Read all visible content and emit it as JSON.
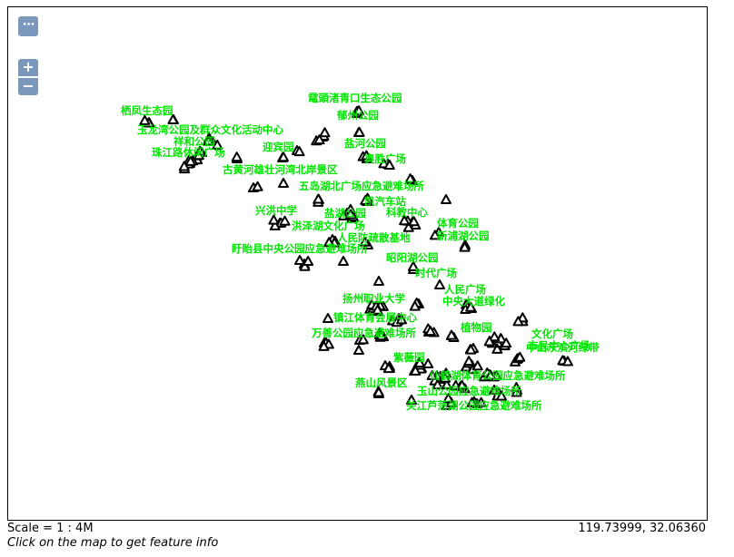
{
  "controls": {
    "menu_label": "⋯",
    "zoom_in_label": "+",
    "zoom_out_label": "−",
    "accent_color": "#7b98bc"
  },
  "map": {
    "label_color": "#00e600",
    "marker_color": "#000000",
    "marker_shape": "triangle-icon",
    "labels": [
      {
        "name": "栖凤生态园"
      },
      {
        "name": "鼋頭渚青口生态公园"
      },
      {
        "name": "郁州公园"
      },
      {
        "name": "玉龙湾公园及群众文化活动中心"
      },
      {
        "name": "祥和公园"
      },
      {
        "name": "迎宾园"
      },
      {
        "name": "珠江路休闲广场"
      },
      {
        "name": "盐河公园"
      },
      {
        "name": "奥胜广场"
      },
      {
        "name": "古黄河雄壮河湾北岸景区"
      },
      {
        "name": "五岛湖北广场应急避难场所"
      },
      {
        "name": "凯汽车站"
      },
      {
        "name": "兴洪中学"
      },
      {
        "name": "盐湖公园"
      },
      {
        "name": "科教中心"
      },
      {
        "name": "洪泽湖文化广场"
      },
      {
        "name": "体育公园"
      },
      {
        "name": "人民防疏散基地"
      },
      {
        "name": "新浦湖公园"
      },
      {
        "name": "盱眙县中央公园应急避难场所"
      },
      {
        "name": "昭阳湖公园"
      },
      {
        "name": "时代广场"
      },
      {
        "name": "人民广场"
      },
      {
        "name": "扬州职业大学"
      },
      {
        "name": "中央大道绿化"
      },
      {
        "name": "镇江体育会展中心"
      },
      {
        "name": "植物园"
      },
      {
        "name": "万善公园应急避难场所"
      },
      {
        "name": "文化广场"
      },
      {
        "name": "市民中心广场"
      },
      {
        "name": "中山东滨河绿带"
      },
      {
        "name": "紫薇园"
      },
      {
        "name": "仙鹤湖体育公园应急避难场所"
      },
      {
        "name": "燕山风景区"
      },
      {
        "name": "玉山公园应急避难场所"
      },
      {
        "name": "关江芦荡湖公园应急避难场所"
      }
    ]
  },
  "status": {
    "scale": "Scale = 1 : 4M",
    "coordinates": "119.73999, 32.06360",
    "hint": "Click on the map to get feature info"
  }
}
